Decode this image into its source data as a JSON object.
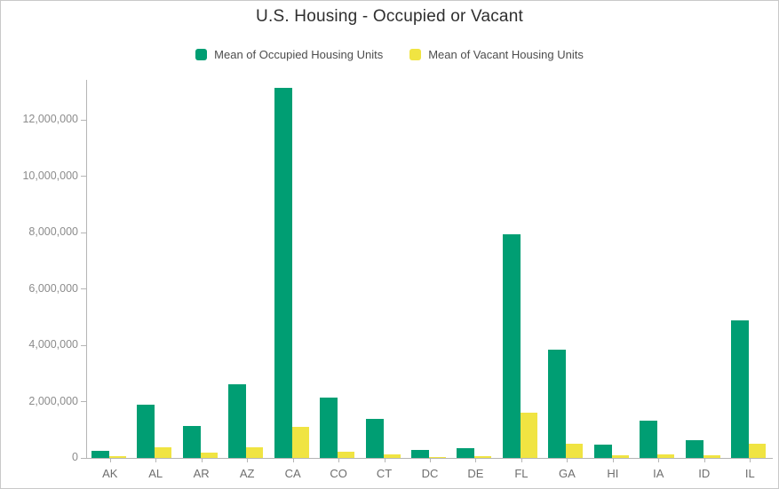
{
  "title": "U.S. Housing - Occupied or Vacant",
  "colors": {
    "occupied_green": "#009E73",
    "vacant_yellow": "#F0E442",
    "axis_line": "#b5b5b5",
    "title_text": "#2f2f2f",
    "legend_text": "#4d4d4d",
    "y_tick_text": "#8c8c8c",
    "x_tick_text": "#6e6e6e"
  },
  "chart_data": {
    "type": "bar",
    "title": "U.S. Housing - Occupied or Vacant",
    "xlabel": "",
    "ylabel": "",
    "grid": false,
    "legend_position": "top",
    "ylim": [
      0,
      13430000
    ],
    "yticks": [
      0,
      2000000,
      4000000,
      6000000,
      8000000,
      10000000,
      12000000
    ],
    "ytick_labels": [
      "0",
      "2,000,000",
      "4,000,000",
      "6,000,000",
      "8,000,000",
      "10,000,000",
      "12,000,000"
    ],
    "categories": [
      "AK",
      "AL",
      "AR",
      "AZ",
      "CA",
      "CO",
      "CT",
      "DC",
      "DE",
      "FL",
      "GA",
      "HI",
      "IA",
      "ID",
      "IL"
    ],
    "series": [
      {
        "name": "Mean of Occupied Housing Units",
        "color": "#009E73",
        "values": [
          250000,
          1900000,
          1150000,
          2620000,
          13150000,
          2130000,
          1390000,
          280000,
          360000,
          7950000,
          3850000,
          470000,
          1320000,
          630000,
          4900000
        ]
      },
      {
        "name": "Mean of Vacant Housing Units",
        "color": "#F0E442",
        "values": [
          70000,
          380000,
          185000,
          390000,
          1100000,
          215000,
          140000,
          30000,
          70000,
          1610000,
          490000,
          85000,
          130000,
          80000,
          490000
        ]
      }
    ]
  }
}
